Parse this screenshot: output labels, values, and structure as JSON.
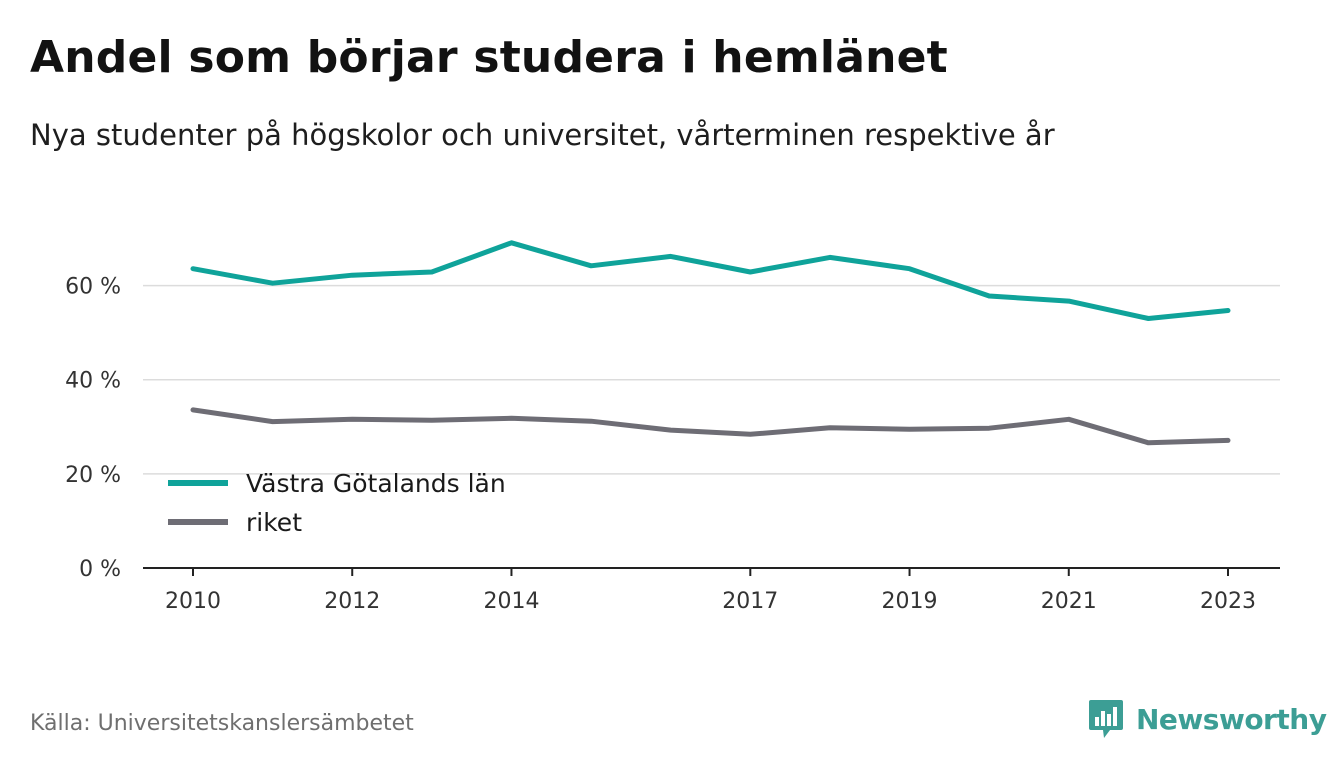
{
  "title": "Andel som börjar studera i hemlänet",
  "subtitle": "Nya studenter på högskolor och universitet, vårterminen respektive år",
  "source": "Källa: Universitetskanslersämbetet",
  "brand": "Newsworthy",
  "colors": {
    "series_teal": "#0fa39a",
    "series_gray": "#6e6d75",
    "grid": "#dcdcdc",
    "axis": "#222222",
    "brand": "#3c9e95"
  },
  "chart_data": {
    "type": "line",
    "x": [
      2010,
      2011,
      2012,
      2013,
      2014,
      2015,
      2016,
      2017,
      2018,
      2019,
      2020,
      2021,
      2022,
      2023
    ],
    "x_tick_labels": [
      "2010",
      "2012",
      "2014",
      "2017",
      "2019",
      "2021",
      "2023"
    ],
    "y_ticks": [
      0,
      20,
      40,
      60
    ],
    "y_tick_labels": [
      "0 %",
      "20 %",
      "40 %",
      "60 %"
    ],
    "ylim": [
      0,
      75
    ],
    "grid": true,
    "legend_position": "bottom-left",
    "series": [
      {
        "name": "Västra Götalands län",
        "color": "#0fa39a",
        "values": [
          63.6,
          60.5,
          62.2,
          62.9,
          69.1,
          64.2,
          66.2,
          62.9,
          66.0,
          63.6,
          57.8,
          56.7,
          53.0,
          54.7
        ]
      },
      {
        "name": "riket",
        "color": "#6e6d75",
        "values": [
          33.6,
          31.1,
          31.6,
          31.4,
          31.8,
          31.2,
          29.3,
          28.4,
          29.8,
          29.5,
          29.7,
          31.6,
          26.6,
          27.1
        ]
      }
    ]
  }
}
